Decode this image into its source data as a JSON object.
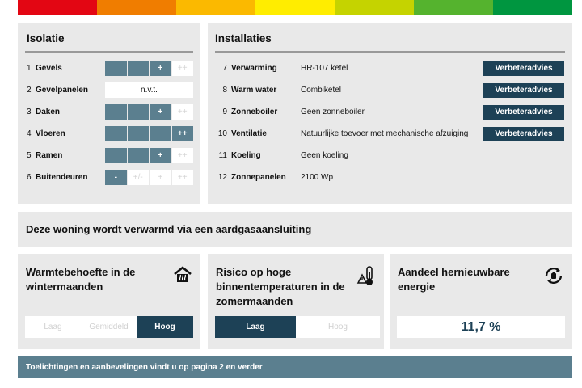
{
  "energy_bar": {
    "colors": [
      "#e30613",
      "#f07d00",
      "#fbb900",
      "#ffed00",
      "#c5d300",
      "#55b32e",
      "#009640"
    ]
  },
  "isolatie": {
    "title": "Isolatie",
    "rows": [
      {
        "num": "1",
        "label": "Gevels",
        "cells": [
          "",
          "",
          "+",
          "++"
        ],
        "active": 3
      },
      {
        "num": "2",
        "label": "Gevelpanelen",
        "na": "n.v.t."
      },
      {
        "num": "3",
        "label": "Daken",
        "cells": [
          "",
          "",
          "+",
          "++"
        ],
        "active": 3
      },
      {
        "num": "4",
        "label": "Vloeren",
        "cells": [
          "",
          "",
          "",
          "++"
        ],
        "active": 4
      },
      {
        "num": "5",
        "label": "Ramen",
        "cells": [
          "",
          "",
          "+",
          "++"
        ],
        "active": 3
      },
      {
        "num": "6",
        "label": "Buitendeuren",
        "cells": [
          "-",
          "+/-",
          "+",
          "++"
        ],
        "active": 1
      }
    ]
  },
  "installaties": {
    "title": "Installaties",
    "rows": [
      {
        "num": "7",
        "label": "Verwarming",
        "value": "HR-107 ketel",
        "button": "Verbeteradvies"
      },
      {
        "num": "8",
        "label": "Warm water",
        "value": "Combiketel",
        "button": "Verbeteradvies"
      },
      {
        "num": "9",
        "label": "Zonneboiler",
        "value": "Geen zonneboiler",
        "button": "Verbeteradvies"
      },
      {
        "num": "10",
        "label": "Ventilatie",
        "value": "Natuurlijke toevoer met mechanische afzuiging",
        "button": "Verbeteradvies"
      },
      {
        "num": "11",
        "label": "Koeling",
        "value": "Geen koeling"
      },
      {
        "num": "12",
        "label": "Zonnepanelen",
        "value": "2100 Wp"
      }
    ]
  },
  "heating_statement": "Deze woning wordt verwarmd via een aardgasaansluiting",
  "warmtebehoefte": {
    "title": "Warmtebehoefte in de wintermaanden",
    "icon": "house-heat-icon",
    "options": [
      "Laag",
      "Gemiddeld",
      "Hoog"
    ],
    "selected": "Hoog"
  },
  "risico": {
    "title": "Risico op hoge binnentemperaturen in de zomermaanden",
    "icon": "thermometer-warning-icon",
    "options": [
      "Laag",
      "Hoog"
    ],
    "selected": "Laag"
  },
  "aandeel": {
    "title": "Aandeel hernieuwbare energie",
    "icon": "renewable-cycle-icon",
    "value": "11,7 %"
  },
  "footer_note": "Toelichtingen en aanbevelingen vindt u op pagina 2 en verder"
}
